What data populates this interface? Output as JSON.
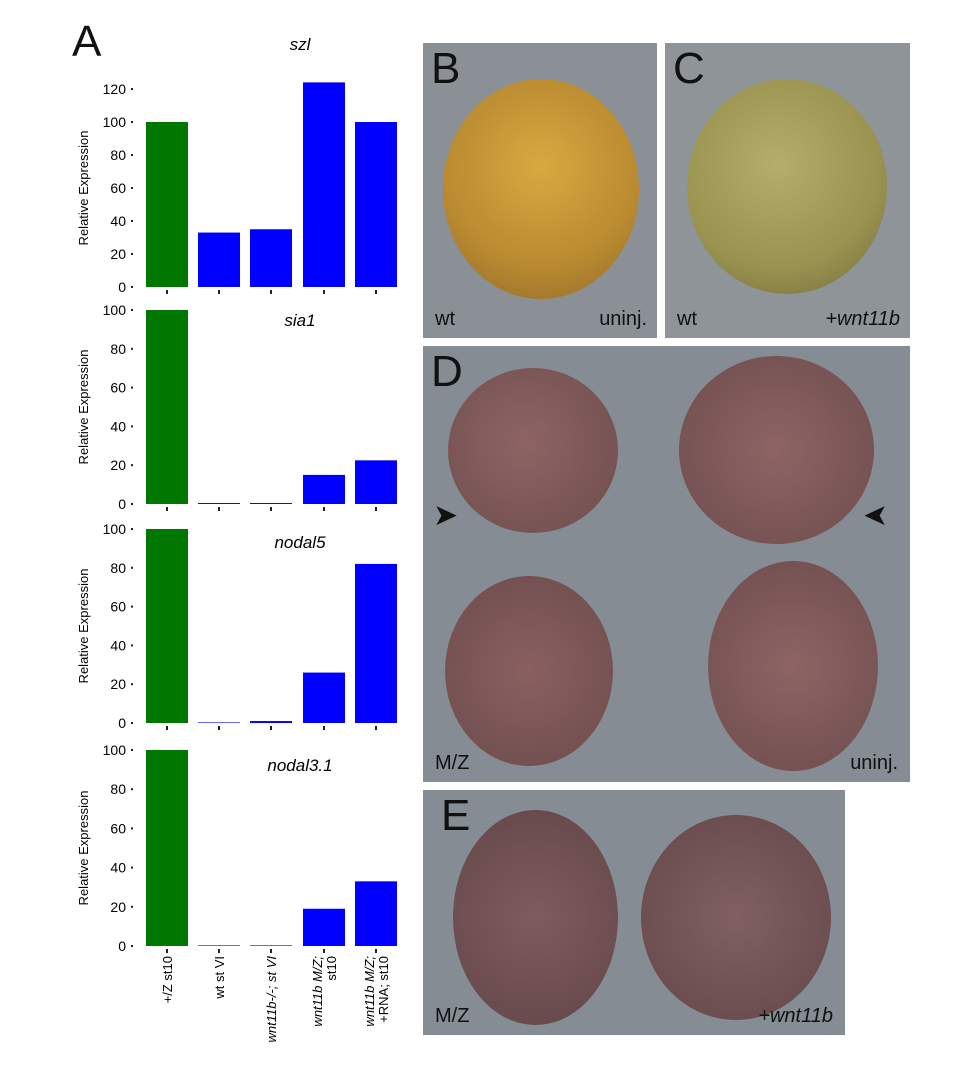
{
  "panel_labels": {
    "A": "A",
    "B": "B",
    "C": "C",
    "D": "D",
    "E": "E"
  },
  "photos": {
    "B": {
      "left": "wt",
      "right": "uninj."
    },
    "C": {
      "left": "wt",
      "right": "+wnt11b"
    },
    "D": {
      "left": "M/Z",
      "right": "uninj."
    },
    "E": {
      "left": "M/Z",
      "right": "+wnt11b"
    }
  },
  "colors": {
    "control": "#007700",
    "sample": "#0000ff"
  },
  "chart_data": [
    {
      "type": "bar",
      "title": "szl",
      "ylabel": "Relative Expression",
      "ylim": [
        0,
        120
      ],
      "yticks": [
        "0",
        "20",
        "40",
        "60",
        "80",
        "100",
        "120"
      ],
      "categories": [
        "+/Z st10",
        "wt st VI",
        "wnt11b-/-; st VI",
        "wnt11b M/Z; st10",
        "wnt11b M/Z; +RNA; st10"
      ],
      "values": [
        100,
        33,
        35,
        124,
        100
      ]
    },
    {
      "type": "bar",
      "title": "sia1",
      "ylabel": "Relative Expression",
      "ylim": [
        0,
        100
      ],
      "yticks": [
        "0",
        "20",
        "40",
        "60",
        "80",
        "100"
      ],
      "categories": [
        "+/Z st10",
        "wt st VI",
        "wnt11b-/-; st VI",
        "wnt11b M/Z; st10",
        "wnt11b M/Z; +RNA; st10"
      ],
      "values": [
        100,
        0.5,
        0.5,
        15,
        22.5
      ]
    },
    {
      "type": "bar",
      "title": "nodal5",
      "ylabel": "Relative Expression",
      "ylim": [
        0,
        100
      ],
      "yticks": [
        "0",
        "20",
        "40",
        "60",
        "80",
        "100"
      ],
      "categories": [
        "+/Z st10",
        "wt st VI",
        "wnt11b-/-; st VI",
        "wnt11b M/Z; st10",
        "wnt11b M/Z; +RNA; st10"
      ],
      "values": [
        100,
        0.3,
        1,
        26,
        82
      ]
    },
    {
      "type": "bar",
      "title": "nodal3.1",
      "ylabel": "Relative Expression",
      "ylim": [
        0,
        100
      ],
      "yticks": [
        "0",
        "20",
        "40",
        "60",
        "80",
        "100"
      ],
      "categories": [
        "+/Z st10",
        "wt st VI",
        "wnt11b-/-; st VI",
        "wnt11b M/Z; st10",
        "wnt11b M/Z; +RNA; st10"
      ],
      "values": [
        100,
        0,
        0,
        19,
        33
      ]
    }
  ],
  "xtick_labels": [
    "+/Z st10",
    "wt st VI",
    "wnt11b-/-; st VI",
    "wnt11b M/Z;",
    "st10",
    "wnt11b M/Z;",
    "+RNA; st10"
  ]
}
